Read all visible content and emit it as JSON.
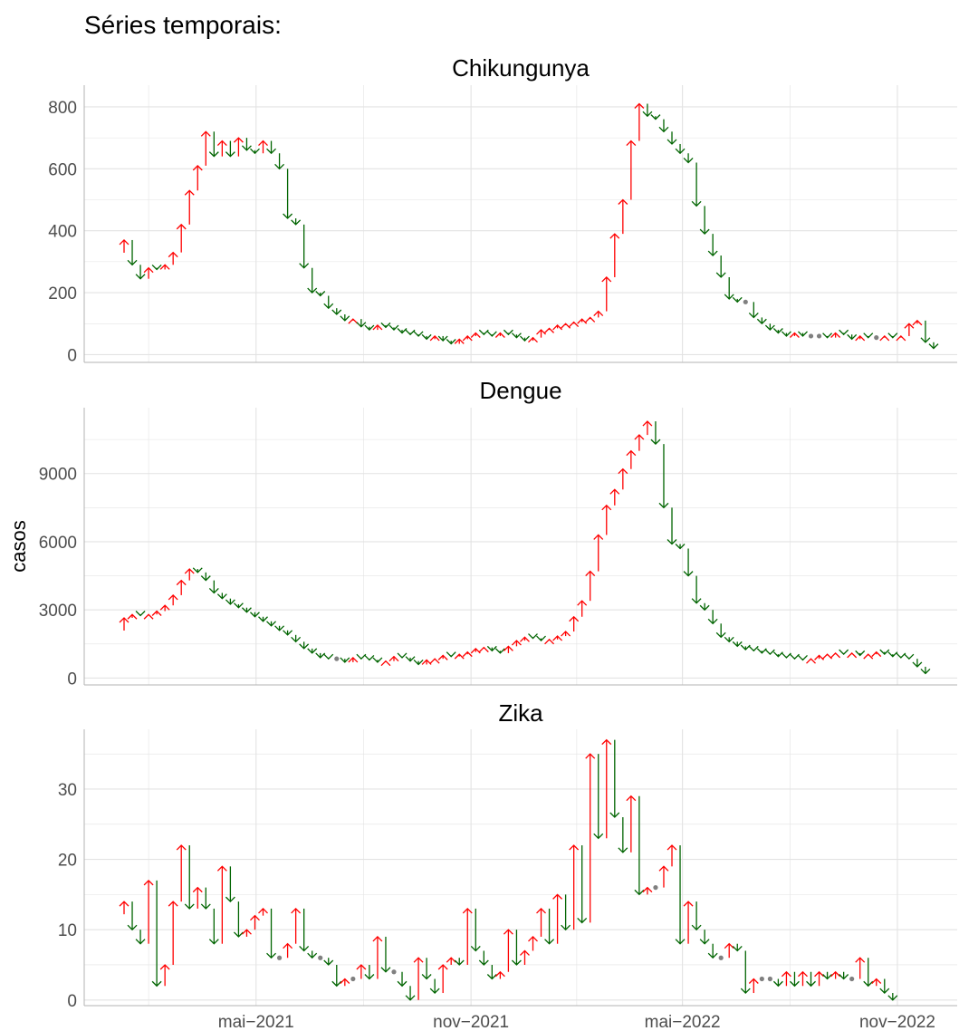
{
  "page_title": "Séries temporais:",
  "colors": {
    "up": "#ff0000",
    "down": "#006400",
    "flat": "#808080",
    "grid": "#e3e3e3",
    "axis": "#b3b3b3",
    "tick_text": "#4d4d4d"
  },
  "chart_data": [
    {
      "type": "line",
      "title": "Chikungunya",
      "ylabel": "casos",
      "xlabel": "",
      "x_start": "2021-01-08",
      "interval_days": 7,
      "ylim": [
        -25,
        870
      ],
      "y_ticks": [
        0,
        200,
        400,
        600,
        800
      ],
      "y_tick_labels": [
        "0",
        "200",
        "400",
        "600",
        "800"
      ],
      "grid": true,
      "legend": "none",
      "values": [
        370,
        290,
        245,
        280,
        275,
        290,
        330,
        420,
        530,
        610,
        720,
        640,
        690,
        640,
        700,
        660,
        650,
        690,
        650,
        600,
        440,
        420,
        280,
        200,
        190,
        150,
        130,
        110,
        115,
        90,
        80,
        95,
        88,
        80,
        70,
        65,
        60,
        50,
        60,
        45,
        35,
        50,
        60,
        70,
        65,
        60,
        70,
        65,
        55,
        45,
        55,
        80,
        85,
        95,
        100,
        105,
        115,
        120,
        140,
        250,
        390,
        500,
        690,
        810,
        770,
        760,
        720,
        680,
        650,
        620,
        480,
        390,
        320,
        250,
        180,
        170,
        170,
        120,
        100,
        80,
        70,
        60,
        70,
        60,
        60,
        60,
        55,
        70,
        65,
        50,
        60,
        55,
        55,
        60,
        55,
        60,
        100,
        110,
        40,
        20
      ],
      "x_ticks": [
        "2021-05-01",
        "2021-11-01",
        "2022-05-01",
        "2022-11-01"
      ],
      "x_tick_labels": [
        "mai−2021",
        "nov−2021",
        "mai−2022",
        "nov−2022"
      ]
    },
    {
      "type": "line",
      "title": "Dengue",
      "ylabel": "casos",
      "xlabel": "",
      "x_start": "2021-01-08",
      "interval_days": 7,
      "ylim": [
        -300,
        11900
      ],
      "y_ticks": [
        0,
        3000,
        6000,
        9000
      ],
      "y_tick_labels": [
        "0",
        "3000",
        "6000",
        "9000"
      ],
      "grid": true,
      "legend": "none",
      "values": [
        2650,
        2800,
        2750,
        2800,
        2950,
        3200,
        3650,
        4300,
        4800,
        4650,
        4300,
        3750,
        3500,
        3250,
        3100,
        2900,
        2700,
        2500,
        2300,
        2100,
        1900,
        1600,
        1300,
        1100,
        900,
        850,
        850,
        700,
        900,
        850,
        800,
        700,
        750,
        950,
        900,
        750,
        600,
        800,
        850,
        1000,
        950,
        1050,
        1150,
        1300,
        1350,
        1200,
        1100,
        1400,
        1650,
        1800,
        1750,
        1650,
        1700,
        1850,
        2050,
        2700,
        3400,
        4700,
        6300,
        7600,
        8300,
        9200,
        10000,
        10700,
        11300,
        10300,
        7500,
        5900,
        5700,
        4500,
        3300,
        3000,
        2400,
        1800,
        1600,
        1400,
        1250,
        1200,
        1100,
        1050,
        950,
        900,
        850,
        800,
        850,
        1000,
        1050,
        1100,
        1050,
        1100,
        1000,
        1050,
        1150,
        1050,
        950,
        900,
        850,
        500,
        200
      ],
      "x_ticks": [
        "2021-05-01",
        "2021-11-01",
        "2022-05-01",
        "2022-11-01"
      ],
      "x_tick_labels": [
        "mai−2021",
        "nov−2021",
        "mai−2022",
        "nov−2022"
      ]
    },
    {
      "type": "line",
      "title": "Zika",
      "ylabel": "casos",
      "xlabel": "",
      "x_start": "2021-01-08",
      "interval_days": 7,
      "ylim": [
        -0.8,
        38.5
      ],
      "y_ticks": [
        0,
        10,
        20,
        30
      ],
      "y_tick_labels": [
        "0",
        "10",
        "20",
        "30"
      ],
      "grid": true,
      "legend": "none",
      "values": [
        14,
        10,
        8,
        17,
        2,
        5,
        14,
        22,
        13,
        16,
        13,
        8,
        19,
        14,
        9,
        10,
        12,
        13,
        6,
        6,
        8,
        13,
        7,
        6,
        6,
        5,
        2,
        3,
        3,
        5,
        3,
        9,
        4,
        4,
        2,
        0,
        6,
        3,
        1,
        5,
        6,
        5,
        13,
        7,
        5,
        3,
        4,
        10,
        5,
        7,
        9,
        13,
        8,
        15,
        10,
        22,
        11,
        35,
        23,
        37,
        26,
        21,
        29,
        15,
        16,
        16,
        19,
        22,
        8,
        14,
        10,
        8,
        6,
        6,
        8,
        7,
        1,
        3,
        3,
        3,
        2,
        4,
        2,
        4,
        2,
        4,
        3,
        4,
        3,
        3,
        6,
        2,
        3,
        1,
        0
      ],
      "x_ticks": [
        "2021-05-01",
        "2021-11-01",
        "2022-05-01",
        "2022-11-01"
      ],
      "x_tick_labels": [
        "mai−2021",
        "nov−2021",
        "mai−2022",
        "nov−2022"
      ]
    }
  ]
}
